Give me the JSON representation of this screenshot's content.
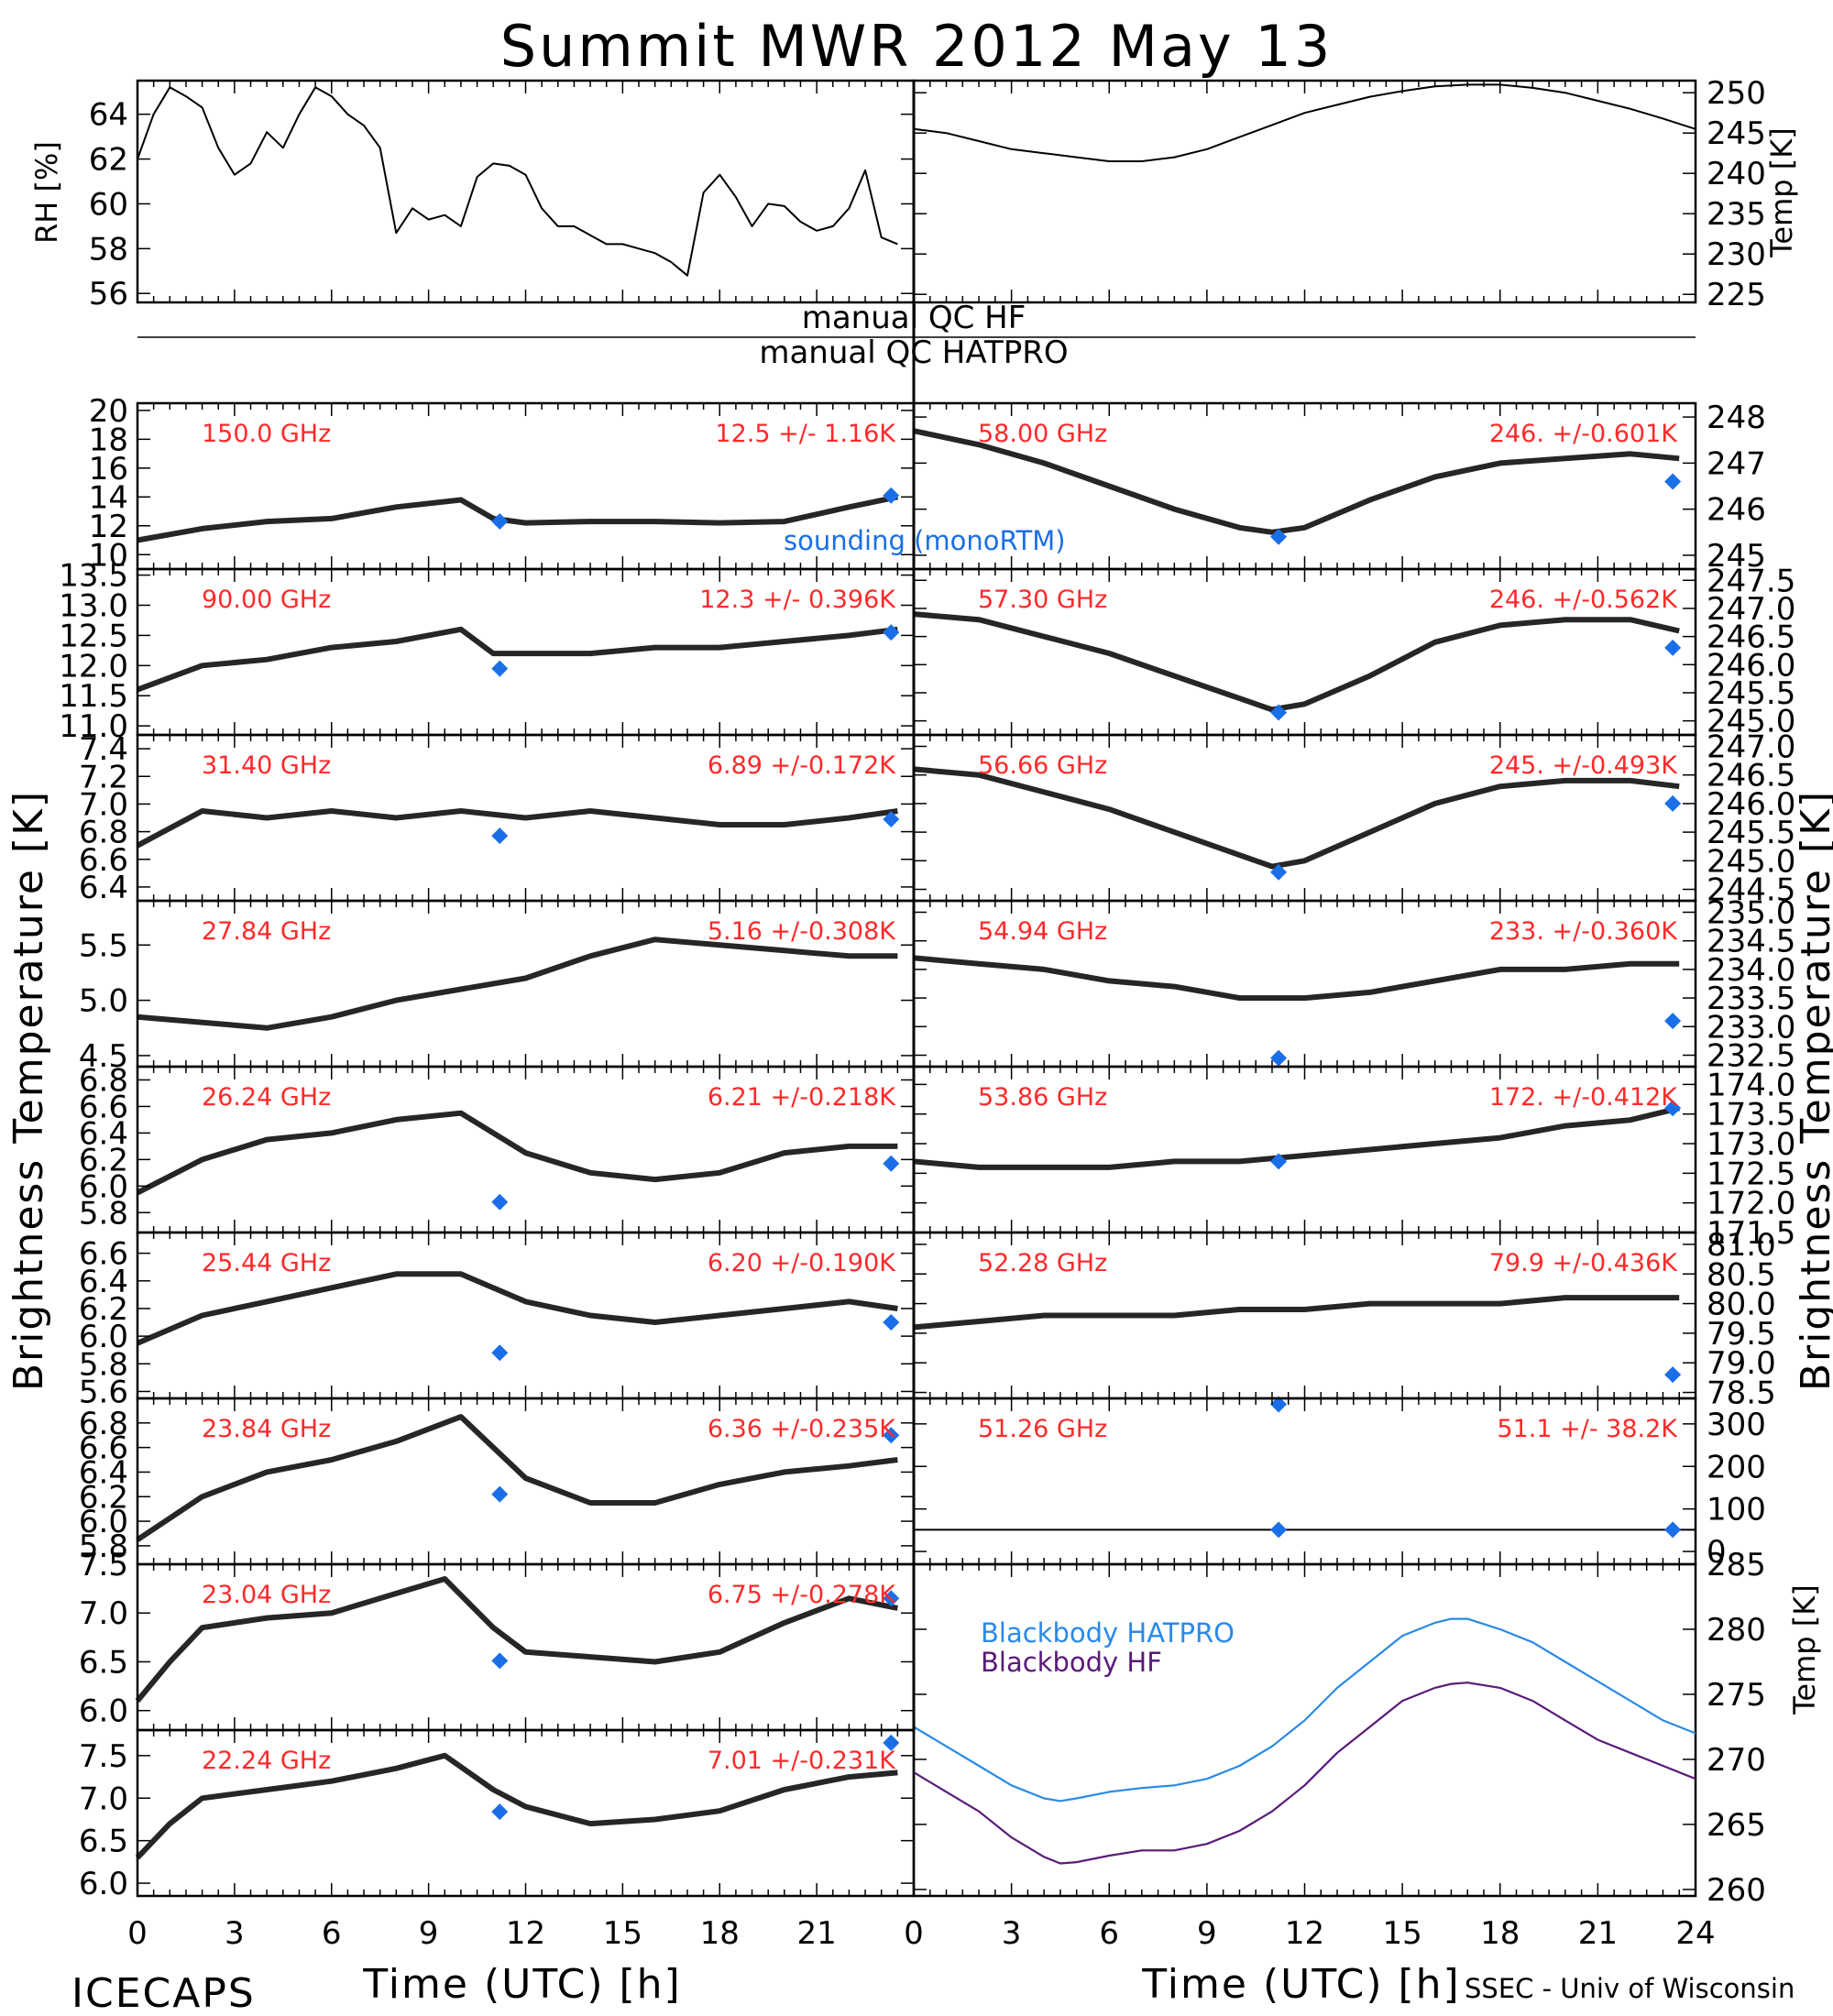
{
  "title": "Summit MWR 2012 May 13",
  "xlabel": "Time (UTC) [h]",
  "x_ticks": [
    "0",
    "3",
    "6",
    "9",
    "12",
    "15",
    "18",
    "21",
    "24"
  ],
  "footer_left": "ICECAPS",
  "footer_right": "SSEC - Univ of Wisconsin",
  "ylabel_left": "Brightness Temperature [K]",
  "ylabel_right": "Brightness Temperature [K]",
  "colors": {
    "data": "#000000",
    "annotation": "#ff2a2a",
    "sounding": "#1a6fe8",
    "hatpro": "#2a8ae8",
    "hf": "#5a1a78"
  },
  "qc": {
    "hf": "manual QC HF",
    "hatpro": "manual QC HATPRO"
  },
  "sounding_label": "sounding (monoRTM)",
  "chart_data": [
    {
      "id": "rh",
      "type": "line",
      "ylabel": "RH [%]",
      "ylim": [
        55.6,
        65.5
      ],
      "y_ticks": [
        56,
        58,
        60,
        62,
        64
      ],
      "x": [
        0,
        0.5,
        1,
        1.5,
        2,
        2.5,
        3,
        3.5,
        4,
        4.5,
        5,
        5.5,
        6,
        6.5,
        7,
        7.5,
        8,
        8.5,
        9,
        9.5,
        10,
        10.5,
        11,
        11.5,
        12,
        12.5,
        13,
        13.5,
        14,
        14.5,
        15,
        15.5,
        16,
        16.5,
        17,
        17.5,
        18,
        18.5,
        19,
        19.5,
        20,
        20.5,
        21,
        21.5,
        22,
        22.5,
        23,
        23.5
      ],
      "y": [
        62,
        64,
        65.2,
        64.8,
        64.3,
        62.5,
        61.3,
        61.8,
        63.2,
        62.5,
        64,
        65.2,
        64.8,
        64,
        63.5,
        62.5,
        58.7,
        59.8,
        59.3,
        59.5,
        59,
        61.2,
        61.8,
        61.7,
        61.3,
        59.8,
        59,
        59,
        58.6,
        58.2,
        58.2,
        58,
        57.8,
        57.4,
        56.8,
        60.5,
        61.3,
        60.3,
        59,
        60,
        59.9,
        59.2,
        58.8,
        59,
        59.8,
        61.5,
        58.5,
        58.2
      ]
    },
    {
      "id": "temp",
      "type": "line",
      "ylabel": "Temp [K]",
      "ylim": [
        224,
        251.5
      ],
      "y_ticks": [
        225,
        230,
        235,
        240,
        245,
        250
      ],
      "x": [
        0,
        1,
        2,
        3,
        4,
        5,
        6,
        7,
        8,
        9,
        10,
        11,
        12,
        13,
        14,
        15,
        16,
        17,
        18,
        19,
        20,
        21,
        22,
        23,
        24
      ],
      "y": [
        245.5,
        245,
        244,
        243,
        242.5,
        242,
        241.5,
        241.5,
        242,
        243,
        244.5,
        246,
        247.5,
        248.5,
        249.5,
        250.2,
        250.8,
        251,
        251,
        250.6,
        250,
        249,
        248,
        246.8,
        245.5
      ]
    },
    {
      "id": "ch150",
      "freq": "150.0 GHz",
      "stats": "12.5 +/- 1.16K",
      "type": "line",
      "ylim": [
        9,
        20.5
      ],
      "y_ticks": [
        10,
        12,
        14,
        16,
        18,
        20
      ],
      "x": [
        0,
        2,
        4,
        6,
        8,
        10,
        11,
        12,
        14,
        16,
        18,
        20,
        22,
        23.5
      ],
      "y": [
        11,
        11.8,
        12.3,
        12.5,
        13.3,
        13.8,
        12.5,
        12.2,
        12.3,
        12.3,
        12.2,
        12.3,
        13.3,
        14
      ],
      "sounding": [
        {
          "x": 11.2,
          "y": 12.3
        },
        {
          "x": 23.3,
          "y": 14.1
        }
      ]
    },
    {
      "id": "ch90",
      "freq": "90.00 GHz",
      "stats": "12.3 +/- 0.396K",
      "type": "line",
      "ylim": [
        10.85,
        13.6
      ],
      "y_ticks": [
        11.0,
        11.5,
        12.0,
        12.5,
        13.0,
        13.5
      ],
      "x": [
        0,
        2,
        4,
        6,
        8,
        10,
        11,
        12,
        14,
        16,
        18,
        20,
        22,
        23.5
      ],
      "y": [
        11.6,
        12,
        12.1,
        12.3,
        12.4,
        12.6,
        12.2,
        12.2,
        12.2,
        12.3,
        12.3,
        12.4,
        12.5,
        12.6
      ],
      "sounding": [
        {
          "x": 11.2,
          "y": 11.95
        },
        {
          "x": 23.3,
          "y": 12.55
        }
      ]
    },
    {
      "id": "ch31",
      "freq": "31.40 GHz",
      "stats": "6.89 +/-0.172K",
      "type": "line",
      "ylim": [
        6.3,
        7.5
      ],
      "y_ticks": [
        6.4,
        6.6,
        6.8,
        7.0,
        7.2,
        7.4
      ],
      "x": [
        0,
        2,
        4,
        6,
        8,
        10,
        12,
        14,
        16,
        18,
        20,
        22,
        23.5
      ],
      "y": [
        6.7,
        6.95,
        6.9,
        6.95,
        6.9,
        6.95,
        6.9,
        6.95,
        6.9,
        6.85,
        6.85,
        6.9,
        6.95
      ],
      "sounding": [
        {
          "x": 11.2,
          "y": 6.77
        },
        {
          "x": 23.3,
          "y": 6.89
        }
      ]
    },
    {
      "id": "ch2784",
      "freq": "27.84 GHz",
      "stats": "5.16 +/-0.308K",
      "type": "line",
      "ylim": [
        4.4,
        5.9
      ],
      "y_ticks": [
        4.5,
        5.0,
        5.5
      ],
      "x": [
        0,
        2,
        4,
        6,
        8,
        10,
        12,
        14,
        16,
        18,
        20,
        22,
        23.5
      ],
      "y": [
        4.85,
        4.8,
        4.75,
        4.85,
        5.0,
        5.1,
        5.2,
        5.4,
        5.55,
        5.5,
        5.45,
        5.4,
        5.4
      ],
      "sounding": []
    },
    {
      "id": "ch2624",
      "freq": "26.24 GHz",
      "stats": "6.21 +/-0.218K",
      "type": "line",
      "ylim": [
        5.65,
        6.9
      ],
      "y_ticks": [
        5.8,
        6.0,
        6.2,
        6.4,
        6.6,
        6.8
      ],
      "x": [
        0,
        2,
        4,
        6,
        8,
        10,
        12,
        14,
        16,
        18,
        20,
        22,
        23.5
      ],
      "y": [
        5.95,
        6.2,
        6.35,
        6.4,
        6.5,
        6.55,
        6.25,
        6.1,
        6.05,
        6.1,
        6.25,
        6.3,
        6.3
      ],
      "sounding": [
        {
          "x": 11.2,
          "y": 5.88
        },
        {
          "x": 23.3,
          "y": 6.17
        }
      ]
    },
    {
      "id": "ch2544",
      "freq": "25.44 GHz",
      "stats": "6.20 +/-0.190K",
      "type": "line",
      "ylim": [
        5.55,
        6.75
      ],
      "y_ticks": [
        5.6,
        5.8,
        6.0,
        6.2,
        6.4,
        6.6
      ],
      "x": [
        0,
        2,
        4,
        6,
        8,
        10,
        12,
        14,
        16,
        18,
        20,
        22,
        23.5
      ],
      "y": [
        5.95,
        6.15,
        6.25,
        6.35,
        6.45,
        6.45,
        6.25,
        6.15,
        6.1,
        6.15,
        6.2,
        6.25,
        6.2
      ],
      "sounding": [
        {
          "x": 11.2,
          "y": 5.88
        },
        {
          "x": 23.3,
          "y": 6.1
        }
      ]
    },
    {
      "id": "ch2384",
      "freq": "23.84 GHz",
      "stats": "6.36 +/-0.235K",
      "type": "line",
      "ylim": [
        5.65,
        7.0
      ],
      "y_ticks": [
        5.8,
        6.0,
        6.2,
        6.4,
        6.6,
        6.8
      ],
      "x": [
        0,
        2,
        4,
        6,
        8,
        10,
        11,
        12,
        14,
        16,
        18,
        20,
        22,
        23.5
      ],
      "y": [
        5.85,
        6.2,
        6.4,
        6.5,
        6.65,
        6.85,
        6.6,
        6.35,
        6.15,
        6.15,
        6.3,
        6.4,
        6.45,
        6.5
      ],
      "sounding": [
        {
          "x": 11.2,
          "y": 6.22
        },
        {
          "x": 23.3,
          "y": 6.7
        }
      ]
    },
    {
      "id": "ch2304",
      "freq": "23.04 GHz",
      "stats": "6.75 +/-0.278K",
      "type": "line",
      "ylim": [
        5.8,
        7.5
      ],
      "y_ticks": [
        6.0,
        6.5,
        7.0,
        7.5
      ],
      "x": [
        0,
        1,
        2,
        4,
        6,
        8,
        9.5,
        11,
        12,
        14,
        16,
        18,
        20,
        22,
        23.5
      ],
      "y": [
        6.1,
        6.5,
        6.85,
        6.95,
        7.0,
        7.2,
        7.35,
        6.85,
        6.6,
        6.55,
        6.5,
        6.6,
        6.9,
        7.15,
        7.05
      ],
      "sounding": [
        {
          "x": 11.2,
          "y": 6.51
        },
        {
          "x": 23.3,
          "y": 7.15
        }
      ]
    },
    {
      "id": "ch2224",
      "freq": "22.24 GHz",
      "stats": "7.01 +/-0.231K",
      "type": "line",
      "ylim": [
        5.85,
        7.8
      ],
      "y_ticks": [
        6.0,
        6.5,
        7.0,
        7.5
      ],
      "x": [
        0,
        1,
        2,
        4,
        6,
        8,
        9.5,
        11,
        12,
        14,
        16,
        18,
        20,
        22,
        23.5
      ],
      "y": [
        6.3,
        6.7,
        7.0,
        7.1,
        7.2,
        7.35,
        7.5,
        7.1,
        6.9,
        6.7,
        6.75,
        6.85,
        7.1,
        7.25,
        7.3
      ],
      "sounding": [
        {
          "x": 11.2,
          "y": 6.84
        },
        {
          "x": 23.3,
          "y": 7.65
        }
      ]
    },
    {
      "id": "ch5800",
      "freq": "58.00 GHz",
      "stats": "246. +/-0.601K",
      "type": "line",
      "ylim": [
        244.7,
        248.3
      ],
      "y_ticks": [
        245,
        246,
        247,
        248
      ],
      "x": [
        0,
        2,
        4,
        6,
        8,
        10,
        11,
        12,
        14,
        16,
        18,
        20,
        22,
        23.5
      ],
      "y": [
        247.7,
        247.4,
        247,
        246.5,
        246,
        245.6,
        245.5,
        245.6,
        246.2,
        246.7,
        247,
        247.1,
        247.2,
        247.1
      ],
      "sounding": [
        {
          "x": 11.2,
          "y": 245.4
        },
        {
          "x": 23.3,
          "y": 246.6
        }
      ]
    },
    {
      "id": "ch5730",
      "freq": "57.30 GHz",
      "stats": "246. +/-0.562K",
      "type": "line",
      "ylim": [
        244.75,
        247.7
      ],
      "y_ticks": [
        245.0,
        245.5,
        246.0,
        246.5,
        247.0,
        247.5
      ],
      "x": [
        0,
        2,
        4,
        6,
        8,
        10,
        11,
        12,
        14,
        16,
        18,
        20,
        22,
        23.5
      ],
      "y": [
        246.9,
        246.8,
        246.5,
        246.2,
        245.8,
        245.4,
        245.2,
        245.3,
        245.8,
        246.4,
        246.7,
        246.8,
        246.8,
        246.6
      ],
      "sounding": [
        {
          "x": 11.2,
          "y": 245.15
        },
        {
          "x": 23.3,
          "y": 246.3
        }
      ]
    },
    {
      "id": "ch5666",
      "freq": "56.66 GHz",
      "stats": "245. +/-0.493K",
      "type": "line",
      "ylim": [
        244.3,
        247.2
      ],
      "y_ticks": [
        244.5,
        245.0,
        245.5,
        246.0,
        246.5,
        247.0
      ],
      "x": [
        0,
        2,
        4,
        6,
        8,
        10,
        11,
        12,
        14,
        16,
        18,
        20,
        22,
        23.5
      ],
      "y": [
        246.6,
        246.5,
        246.2,
        245.9,
        245.5,
        245.1,
        244.9,
        245.0,
        245.5,
        246.0,
        246.3,
        246.4,
        246.4,
        246.3
      ],
      "sounding": [
        {
          "x": 11.2,
          "y": 244.8
        },
        {
          "x": 23.3,
          "y": 246.0
        }
      ]
    },
    {
      "id": "ch5494",
      "freq": "54.94 GHz",
      "stats": "233. +/-0.360K",
      "type": "line",
      "ylim": [
        232.3,
        235.2
      ],
      "y_ticks": [
        232.5,
        233.0,
        233.5,
        234.0,
        234.5,
        235.0
      ],
      "x": [
        0,
        2,
        4,
        6,
        8,
        10,
        12,
        14,
        16,
        18,
        20,
        22,
        23.5
      ],
      "y": [
        234.2,
        234.1,
        234.0,
        233.8,
        233.7,
        233.5,
        233.5,
        233.6,
        233.8,
        234.0,
        234.0,
        234.1,
        234.1
      ],
      "sounding": [
        {
          "x": 11.2,
          "y": 232.45
        },
        {
          "x": 23.3,
          "y": 233.1
        }
      ]
    },
    {
      "id": "ch5386",
      "freq": "53.86 GHz",
      "stats": "172. +/-0.412K",
      "type": "line",
      "ylim": [
        171.5,
        174.3
      ],
      "y_ticks": [
        171.5,
        172.0,
        172.5,
        173.0,
        173.5,
        174.0
      ],
      "x": [
        0,
        2,
        4,
        6,
        8,
        10,
        12,
        14,
        16,
        18,
        20,
        22,
        23.5
      ],
      "y": [
        172.7,
        172.6,
        172.6,
        172.6,
        172.7,
        172.7,
        172.8,
        172.9,
        173.0,
        173.1,
        173.3,
        173.4,
        173.6
      ],
      "sounding": [
        {
          "x": 11.2,
          "y": 172.7
        },
        {
          "x": 23.3,
          "y": 173.6
        }
      ]
    },
    {
      "id": "ch5228",
      "freq": "52.28 GHz",
      "stats": "79.9 +/-0.436K",
      "type": "line",
      "ylim": [
        78.4,
        81.2
      ],
      "y_ticks": [
        78.5,
        79.0,
        79.5,
        80.0,
        80.5,
        81.0
      ],
      "x": [
        0,
        2,
        4,
        6,
        8,
        10,
        12,
        14,
        16,
        18,
        20,
        22,
        23.5
      ],
      "y": [
        79.6,
        79.7,
        79.8,
        79.8,
        79.8,
        79.9,
        79.9,
        80.0,
        80.0,
        80.0,
        80.1,
        80.1,
        80.1
      ],
      "sounding": [
        {
          "x": 11.2,
          "y": 78.3
        },
        {
          "x": 23.3,
          "y": 78.8
        }
      ]
    },
    {
      "id": "ch5126",
      "freq": "51.26 GHz",
      "stats": "51.1 +/- 38.2K",
      "type": "line",
      "ylim": [
        -30,
        360
      ],
      "y_ticks": [
        0,
        100,
        200,
        300
      ],
      "x": [
        0,
        24
      ],
      "y": [
        51,
        51
      ],
      "sounding": [
        {
          "x": 11.2,
          "y": 51
        },
        {
          "x": 23.3,
          "y": 51
        }
      ]
    },
    {
      "id": "blackbody",
      "type": "line",
      "ylabel": "Temp [K]",
      "ylim": [
        259.5,
        285
      ],
      "y_ticks": [
        260,
        265,
        270,
        275,
        280,
        285
      ],
      "series": [
        {
          "name": "Blackbody HATPRO",
          "x": [
            0,
            1,
            2,
            3,
            4,
            4.5,
            5,
            6,
            7,
            8,
            9,
            10,
            11,
            12,
            13,
            14,
            15,
            16,
            16.5,
            17,
            18,
            19,
            20,
            21,
            22,
            23,
            24
          ],
          "y": [
            272.5,
            271,
            269.5,
            268,
            267,
            266.8,
            267,
            267.5,
            267.8,
            268,
            268.5,
            269.5,
            271,
            273,
            275.5,
            277.5,
            279.5,
            280.5,
            280.8,
            280.8,
            280,
            279,
            277.5,
            276,
            274.5,
            273,
            272
          ]
        },
        {
          "name": "Blackbody HF",
          "x": [
            0,
            1,
            2,
            3,
            4,
            4.5,
            5,
            6,
            7,
            8,
            9,
            10,
            11,
            12,
            13,
            14,
            15,
            16,
            16.5,
            17,
            18,
            19,
            20,
            21,
            22,
            23,
            24
          ],
          "y": [
            269,
            267.5,
            266,
            264,
            262.5,
            262,
            262.1,
            262.6,
            263,
            263,
            263.5,
            264.5,
            266,
            268,
            270.5,
            272.5,
            274.5,
            275.5,
            275.8,
            275.9,
            275.5,
            274.5,
            273,
            271.5,
            270.5,
            269.5,
            268.5
          ]
        }
      ]
    }
  ]
}
